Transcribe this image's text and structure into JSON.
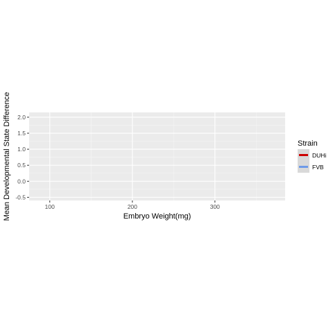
{
  "chart_data": {
    "type": "line",
    "title": "",
    "xlabel": "Embryo Weight(mg)",
    "ylabel": "Mean Developmental State Difference",
    "xlim": [
      75,
      385
    ],
    "ylim": [
      -0.6,
      2.15
    ],
    "x_ticks": [
      100,
      200,
      300
    ],
    "x_tick_labels": [
      "100",
      "200",
      "300"
    ],
    "y_ticks": [
      -0.5,
      0.0,
      0.5,
      1.0,
      1.5,
      2.0
    ],
    "y_tick_labels": [
      "-0.5",
      "0.0",
      "0.5",
      "1.0",
      "1.5",
      "2.0"
    ],
    "grid": true,
    "legend": {
      "title": "Strain",
      "placement": "right",
      "entries": [
        {
          "label": "DUHi",
          "color": "#cc0000"
        },
        {
          "label": "FVB",
          "color": "#6e9ae8"
        }
      ]
    },
    "series": [
      {
        "name": "DUHi",
        "color": "#cc0000",
        "x": [],
        "y": []
      },
      {
        "name": "FVB",
        "color": "#6e9ae8",
        "x": [],
        "y": []
      }
    ]
  }
}
